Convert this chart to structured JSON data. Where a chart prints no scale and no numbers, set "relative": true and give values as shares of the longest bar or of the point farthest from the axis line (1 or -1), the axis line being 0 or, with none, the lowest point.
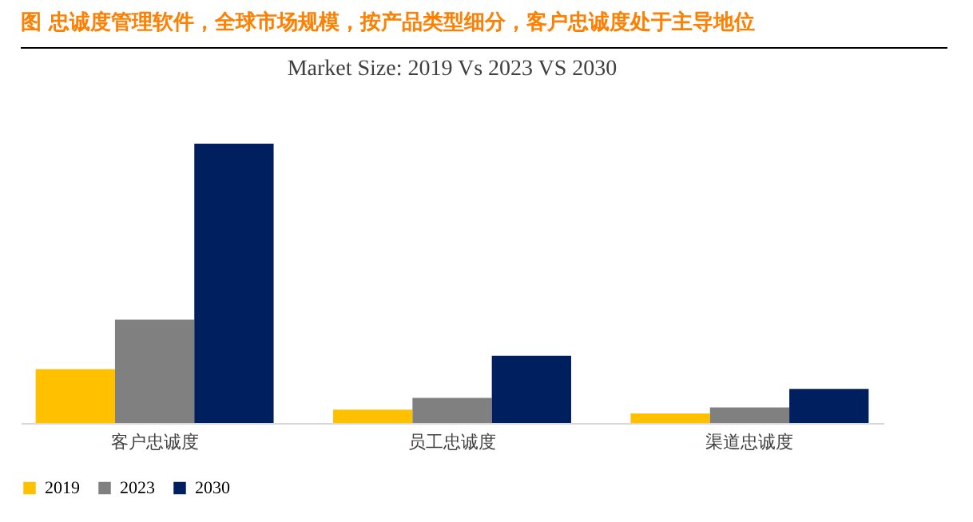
{
  "chart_data": {
    "type": "bar",
    "title": "图    忠诚度管理软件，全球市场规模，按产品类型细分，客户忠诚度处于主导地位",
    "subtitle": "Market Size: 2019 Vs 2023 VS 2030",
    "categories": [
      "客户忠诚度",
      "员工忠诚度",
      "渠道忠诚度"
    ],
    "series": [
      {
        "name": "2019",
        "color": "#ffc000",
        "values": [
          0.193,
          0.048,
          0.034
        ]
      },
      {
        "name": "2023",
        "color": "#808080",
        "values": [
          0.37,
          0.09,
          0.056
        ]
      },
      {
        "name": "2030",
        "color": "#001f5f",
        "values": [
          1,
          0.241,
          0.122
        ]
      }
    ],
    "relative": true,
    "grid": false,
    "legend": "bottom"
  }
}
